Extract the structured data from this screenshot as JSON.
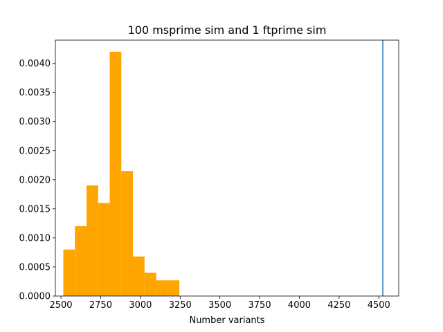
{
  "chart_data": {
    "type": "bar",
    "title": "100 msprime sim and 1 ftprime sim",
    "xlabel": "Number variants",
    "ylabel": "",
    "xlim": [
      2465,
      4625
    ],
    "ylim": [
      0,
      0.0044
    ],
    "x_ticks": [
      2500,
      2750,
      3000,
      3250,
      3500,
      3750,
      4000,
      4250,
      4500
    ],
    "x_tick_labels": [
      "2500",
      "2750",
      "3000",
      "3250",
      "3500",
      "3750",
      "4000",
      "4250",
      "4500"
    ],
    "y_ticks": [
      0,
      0.0005,
      0.001,
      0.0015,
      0.002,
      0.0025,
      0.003,
      0.0035,
      0.004
    ],
    "y_tick_labels": [
      "0.0000",
      "0.0005",
      "0.0010",
      "0.0015",
      "0.0020",
      "0.0025",
      "0.0030",
      "0.0035",
      "0.0040"
    ],
    "grid": false,
    "bin_edges": [
      2515,
      2588,
      2661,
      2734,
      2807,
      2880,
      2953,
      3026,
      3099,
      3172,
      3245
    ],
    "values": [
      0.0008,
      0.0012,
      0.0019,
      0.0016,
      0.0042,
      0.00215,
      0.00068,
      0.0004,
      0.00027,
      0.00027
    ],
    "bar_color": "#ffa500",
    "vertical_line": {
      "x": 4525,
      "color": "#1f77b4"
    }
  }
}
